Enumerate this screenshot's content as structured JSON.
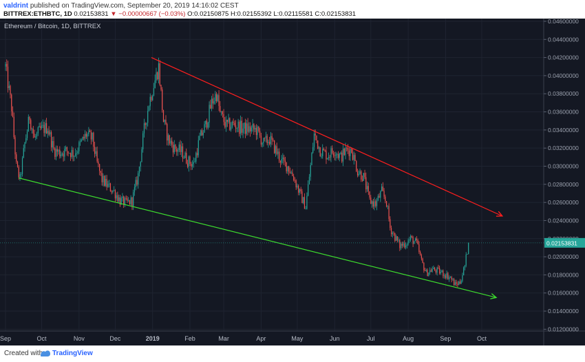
{
  "header": {
    "author": "valdrint",
    "published_text": "published on TradingView.com, September 20, 2019 14:16:02 CEST",
    "symbol": "BITTREX:ETHBTC, 1D",
    "last": "0.02153831",
    "change_arrow": "▼",
    "change": "−0.00000667 (−0.03%)",
    "ohlc": "O:0.02150875 H:0.02155392 L:0.02115581 C:0.02153831"
  },
  "footer": {
    "created_with": "Created with",
    "brand": "TradingView"
  },
  "colors": {
    "background": "#141823",
    "up": "#26a69a",
    "down": "#ef5350",
    "resistance": "#ff1e1e",
    "support": "#3ddc2e",
    "price_label": "#26a69a"
  },
  "chart_data": {
    "type": "candlestick",
    "title": "Ethereum / Bitcoin, 1D, BITTREX",
    "x": {
      "tick_labels": [
        "Sep",
        "Oct",
        "Nov",
        "Dec",
        "2019",
        "Feb",
        "Mar",
        "Apr",
        "May",
        "Jun",
        "Jul",
        "Aug",
        "Sep",
        "Oct"
      ],
      "tick_dates": [
        "2018-09-01",
        "2018-10-01",
        "2018-11-01",
        "2018-12-01",
        "2019-01-01",
        "2019-02-01",
        "2019-03-01",
        "2019-04-01",
        "2019-05-01",
        "2019-06-01",
        "2019-07-01",
        "2019-08-01",
        "2019-09-01",
        "2019-10-01"
      ],
      "range": [
        "2018-09-01",
        "2019-10-21"
      ]
    },
    "y": {
      "range": [
        0.0118,
        0.0463
      ],
      "tick_labels": [
        "0.04600000",
        "0.04400000",
        "0.04200000",
        "0.04000000",
        "0.03800000",
        "0.03600000",
        "0.03400000",
        "0.03200000",
        "0.03000000",
        "0.02800000",
        "0.02600000",
        "0.02400000",
        "0.02200000",
        "0.02000000",
        "0.01800000",
        "0.01600000",
        "0.01400000",
        "0.01200000"
      ],
      "tick_values": [
        0.046,
        0.044,
        0.042,
        0.04,
        0.038,
        0.036,
        0.034,
        0.032,
        0.03,
        0.028,
        0.026,
        0.024,
        0.022,
        0.02,
        0.018,
        0.016,
        0.014,
        0.012
      ]
    },
    "last_price_label": "0.02153831",
    "last_price": 0.02153831,
    "series": [
      {
        "type": "close",
        "points": [
          [
            "2018-09-01",
            0.041
          ],
          [
            "2018-09-06",
            0.0365
          ],
          [
            "2018-09-10",
            0.03
          ],
          [
            "2018-09-13",
            0.0285
          ],
          [
            "2018-09-17",
            0.0325
          ],
          [
            "2018-09-21",
            0.0355
          ],
          [
            "2018-09-25",
            0.033
          ],
          [
            "2018-09-30",
            0.034
          ],
          [
            "2018-10-06",
            0.0343
          ],
          [
            "2018-10-11",
            0.0318
          ],
          [
            "2018-10-16",
            0.0315
          ],
          [
            "2018-10-22",
            0.0317
          ],
          [
            "2018-10-28",
            0.0314
          ],
          [
            "2018-11-01",
            0.0322
          ],
          [
            "2018-11-07",
            0.0335
          ],
          [
            "2018-11-12",
            0.033
          ],
          [
            "2018-11-16",
            0.0303
          ],
          [
            "2018-11-20",
            0.0285
          ],
          [
            "2018-11-25",
            0.0278
          ],
          [
            "2018-11-30",
            0.0272
          ],
          [
            "2018-12-05",
            0.0262
          ],
          [
            "2018-12-10",
            0.0259
          ],
          [
            "2018-12-15",
            0.0262
          ],
          [
            "2018-12-20",
            0.029
          ],
          [
            "2018-12-25",
            0.034
          ],
          [
            "2018-12-29",
            0.037
          ],
          [
            "2019-01-03",
            0.0395
          ],
          [
            "2019-01-06",
            0.041
          ],
          [
            "2019-01-10",
            0.035
          ],
          [
            "2019-01-14",
            0.033
          ],
          [
            "2019-01-19",
            0.032
          ],
          [
            "2019-01-25",
            0.0316
          ],
          [
            "2019-01-30",
            0.0306
          ],
          [
            "2019-02-04",
            0.0302
          ],
          [
            "2019-02-09",
            0.033
          ],
          [
            "2019-02-14",
            0.0345
          ],
          [
            "2019-02-19",
            0.037
          ],
          [
            "2019-02-23",
            0.038
          ],
          [
            "2019-02-26",
            0.0358
          ],
          [
            "2019-03-03",
            0.0345
          ],
          [
            "2019-03-10",
            0.0346
          ],
          [
            "2019-03-16",
            0.0342
          ],
          [
            "2019-03-22",
            0.0341
          ],
          [
            "2019-03-28",
            0.034
          ],
          [
            "2019-04-03",
            0.0325
          ],
          [
            "2019-04-08",
            0.033
          ],
          [
            "2019-04-13",
            0.0318
          ],
          [
            "2019-04-18",
            0.0305
          ],
          [
            "2019-04-23",
            0.03
          ],
          [
            "2019-04-28",
            0.0288
          ],
          [
            "2019-05-03",
            0.027
          ],
          [
            "2019-05-08",
            0.0255
          ],
          [
            "2019-05-12",
            0.03
          ],
          [
            "2019-05-15",
            0.0335
          ],
          [
            "2019-05-20",
            0.0318
          ],
          [
            "2019-05-26",
            0.0312
          ],
          [
            "2019-06-01",
            0.0318
          ],
          [
            "2019-06-06",
            0.031
          ],
          [
            "2019-06-11",
            0.0318
          ],
          [
            "2019-06-15",
            0.0318
          ],
          [
            "2019-06-20",
            0.0295
          ],
          [
            "2019-06-25",
            0.0288
          ],
          [
            "2019-06-30",
            0.0262
          ],
          [
            "2019-07-05",
            0.0258
          ],
          [
            "2019-07-10",
            0.0272
          ],
          [
            "2019-07-14",
            0.026
          ],
          [
            "2019-07-17",
            0.0232
          ],
          [
            "2019-07-21",
            0.0222
          ],
          [
            "2019-07-25",
            0.0212
          ],
          [
            "2019-07-30",
            0.0215
          ],
          [
            "2019-08-03",
            0.022
          ],
          [
            "2019-08-08",
            0.0215
          ],
          [
            "2019-08-12",
            0.0195
          ],
          [
            "2019-08-16",
            0.0182
          ],
          [
            "2019-08-21",
            0.0186
          ],
          [
            "2019-08-26",
            0.0184
          ],
          [
            "2019-08-31",
            0.0181
          ],
          [
            "2019-09-05",
            0.0177
          ],
          [
            "2019-09-09",
            0.0169
          ],
          [
            "2019-09-13",
            0.0172
          ],
          [
            "2019-09-17",
            0.019
          ],
          [
            "2019-09-20",
            0.02153831
          ]
        ]
      },
      {
        "type": "trendline",
        "points": [
          [
            "2018-12-31",
            0.042
          ],
          [
            "2019-10-18",
            0.0245
          ]
        ]
      },
      {
        "type": "trendline",
        "points": [
          [
            "2018-09-12",
            0.0287
          ],
          [
            "2019-10-13",
            0.0155
          ]
        ]
      }
    ],
    "grid": true,
    "legend": "none"
  }
}
